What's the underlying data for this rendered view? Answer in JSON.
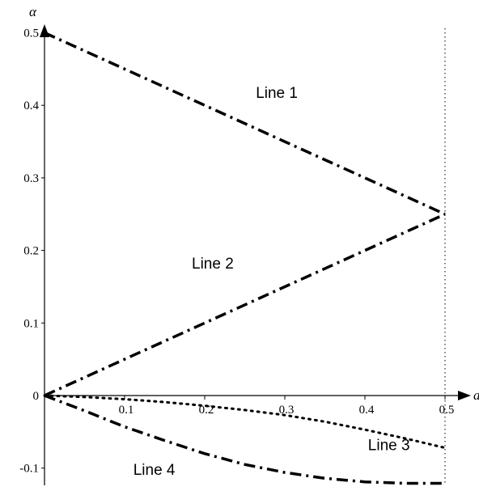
{
  "chart_data": {
    "type": "line",
    "title": "",
    "xlabel": "a",
    "ylabel": "α",
    "xlim": [
      0,
      0.5
    ],
    "ylim": [
      -0.12,
      0.5
    ],
    "x_ticks": [
      {
        "value": 0.1,
        "label": "0.1"
      },
      {
        "value": 0.2,
        "label": "0.2"
      },
      {
        "value": 0.3,
        "label": "0.3"
      },
      {
        "value": 0.4,
        "label": "0.4"
      },
      {
        "value": 0.5,
        "label": "0.5"
      }
    ],
    "y_ticks": [
      {
        "value": 0.5,
        "label": "0.5"
      },
      {
        "value": 0.4,
        "label": "0.4"
      },
      {
        "value": 0.3,
        "label": "0.3"
      },
      {
        "value": 0.2,
        "label": "0.2"
      },
      {
        "value": 0.1,
        "label": "0.1"
      },
      {
        "value": 0,
        "label": "0"
      },
      {
        "value": -0.1,
        "label": "-0.1"
      }
    ],
    "grid": false,
    "reference_line": {
      "x": 0.5,
      "style": "dotted"
    },
    "series": [
      {
        "name": "Line 1",
        "style": "dashdot",
        "x": [
          0,
          0.1,
          0.2,
          0.3,
          0.4,
          0.5
        ],
        "y": [
          0.5,
          0.45,
          0.4,
          0.35,
          0.3,
          0.25
        ],
        "label_at": [
          0.29,
          0.41
        ]
      },
      {
        "name": "Line 2",
        "style": "dashdot",
        "x": [
          0,
          0.1,
          0.2,
          0.3,
          0.4,
          0.5
        ],
        "y": [
          0,
          0.05,
          0.1,
          0.15,
          0.2,
          0.25
        ],
        "label_at": [
          0.21,
          0.175
        ]
      },
      {
        "name": "Line 3",
        "style": "dotted",
        "x": [
          0,
          0.05,
          0.1,
          0.15,
          0.2,
          0.25,
          0.3,
          0.35,
          0.4,
          0.45,
          0.5
        ],
        "y": [
          0,
          -0.002,
          -0.005,
          -0.009,
          -0.014,
          -0.02,
          -0.027,
          -0.036,
          -0.047,
          -0.059,
          -0.072
        ],
        "label_at": [
          0.43,
          -0.075
        ]
      },
      {
        "name": "Line 4",
        "style": "dashdot",
        "x": [
          0,
          0.05,
          0.1,
          0.15,
          0.2,
          0.25,
          0.3,
          0.35,
          0.4,
          0.45,
          0.5
        ],
        "y": [
          0,
          -0.021,
          -0.043,
          -0.062,
          -0.08,
          -0.095,
          -0.106,
          -0.114,
          -0.119,
          -0.121,
          -0.121
        ],
        "label_at": [
          0.137,
          -0.109
        ]
      }
    ]
  }
}
